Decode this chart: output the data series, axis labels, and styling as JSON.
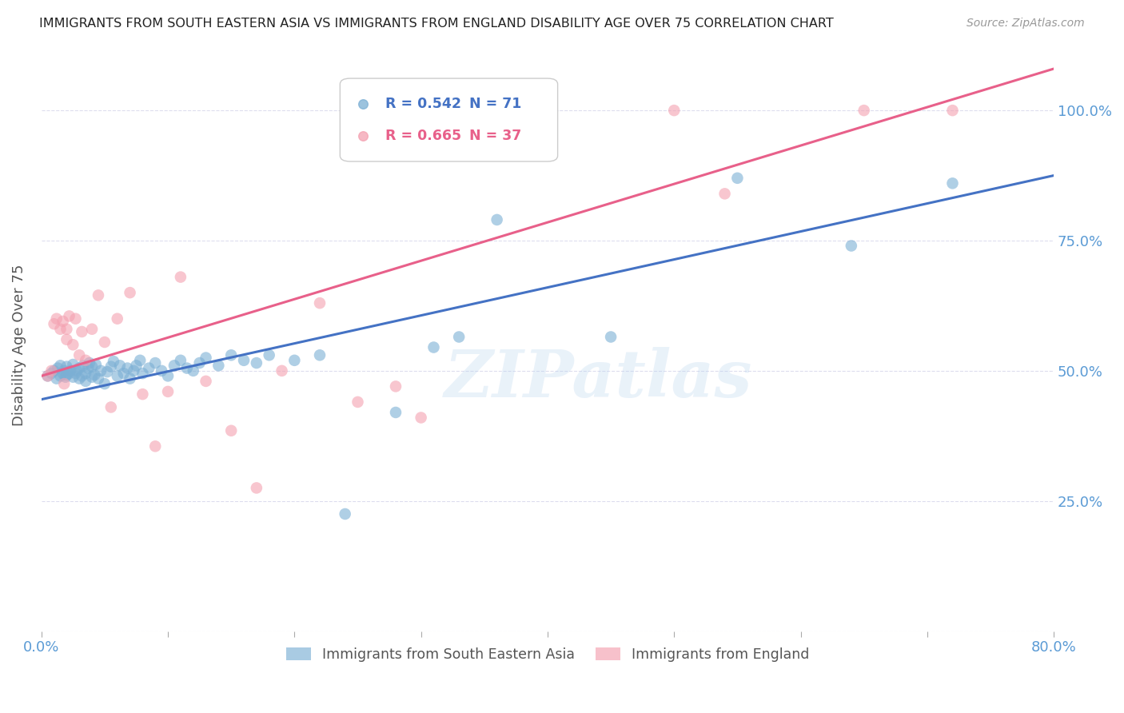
{
  "title": "IMMIGRANTS FROM SOUTH EASTERN ASIA VS IMMIGRANTS FROM ENGLAND DISABILITY AGE OVER 75 CORRELATION CHART",
  "source": "Source: ZipAtlas.com",
  "ylabel": "Disability Age Over 75",
  "y_ticks": [
    0.0,
    0.25,
    0.5,
    0.75,
    1.0
  ],
  "y_tick_labels": [
    "",
    "25.0%",
    "50.0%",
    "75.0%",
    "100.0%"
  ],
  "xlim": [
    0.0,
    0.8
  ],
  "ylim": [
    0.0,
    1.1
  ],
  "legend_label1": "Immigrants from South Eastern Asia",
  "legend_label2": "Immigrants from England",
  "R1": 0.542,
  "N1": 71,
  "R2": 0.665,
  "N2": 37,
  "blue_color": "#7BAFD4",
  "pink_color": "#F4A0B0",
  "line_blue": "#4472C4",
  "line_pink": "#E8608A",
  "axis_color": "#5B9BD5",
  "watermark": "ZIPatlas",
  "blue_points_x": [
    0.005,
    0.008,
    0.01,
    0.012,
    0.013,
    0.015,
    0.015,
    0.017,
    0.018,
    0.019,
    0.02,
    0.02,
    0.022,
    0.023,
    0.025,
    0.025,
    0.027,
    0.028,
    0.03,
    0.03,
    0.032,
    0.033,
    0.035,
    0.035,
    0.037,
    0.038,
    0.04,
    0.04,
    0.042,
    0.043,
    0.045,
    0.047,
    0.05,
    0.052,
    0.055,
    0.057,
    0.06,
    0.062,
    0.065,
    0.068,
    0.07,
    0.073,
    0.075,
    0.078,
    0.08,
    0.085,
    0.09,
    0.095,
    0.1,
    0.105,
    0.11,
    0.115,
    0.12,
    0.125,
    0.13,
    0.14,
    0.15,
    0.16,
    0.17,
    0.18,
    0.2,
    0.22,
    0.24,
    0.28,
    0.31,
    0.33,
    0.36,
    0.45,
    0.55,
    0.64,
    0.72
  ],
  "blue_points_y": [
    0.49,
    0.495,
    0.5,
    0.485,
    0.505,
    0.49,
    0.51,
    0.495,
    0.5,
    0.488,
    0.492,
    0.508,
    0.495,
    0.5,
    0.488,
    0.512,
    0.495,
    0.5,
    0.485,
    0.505,
    0.49,
    0.51,
    0.48,
    0.495,
    0.505,
    0.515,
    0.488,
    0.508,
    0.492,
    0.512,
    0.485,
    0.5,
    0.475,
    0.498,
    0.508,
    0.518,
    0.49,
    0.51,
    0.495,
    0.505,
    0.485,
    0.5,
    0.51,
    0.52,
    0.495,
    0.505,
    0.515,
    0.5,
    0.49,
    0.51,
    0.52,
    0.505,
    0.5,
    0.515,
    0.525,
    0.51,
    0.53,
    0.52,
    0.515,
    0.53,
    0.52,
    0.53,
    0.225,
    0.42,
    0.545,
    0.565,
    0.79,
    0.565,
    0.87,
    0.74,
    0.86
  ],
  "pink_points_x": [
    0.005,
    0.008,
    0.01,
    0.012,
    0.015,
    0.017,
    0.018,
    0.02,
    0.02,
    0.022,
    0.025,
    0.027,
    0.03,
    0.032,
    0.035,
    0.04,
    0.045,
    0.05,
    0.055,
    0.06,
    0.07,
    0.08,
    0.09,
    0.1,
    0.11,
    0.13,
    0.15,
    0.17,
    0.19,
    0.22,
    0.25,
    0.28,
    0.3,
    0.5,
    0.54,
    0.65,
    0.72
  ],
  "pink_points_y": [
    0.49,
    0.5,
    0.59,
    0.6,
    0.58,
    0.595,
    0.475,
    0.56,
    0.58,
    0.605,
    0.55,
    0.6,
    0.53,
    0.575,
    0.52,
    0.58,
    0.645,
    0.555,
    0.43,
    0.6,
    0.65,
    0.455,
    0.355,
    0.46,
    0.68,
    0.48,
    0.385,
    0.275,
    0.5,
    0.63,
    0.44,
    0.47,
    0.41,
    1.0,
    0.84,
    1.0,
    1.0
  ],
  "blue_trend_x0": 0.0,
  "blue_trend_x1": 0.8,
  "blue_trend_y0": 0.445,
  "blue_trend_y1": 0.875,
  "pink_trend_x0": 0.0,
  "pink_trend_x1": 0.8,
  "pink_trend_y0": 0.49,
  "pink_trend_y1": 1.08,
  "background_color": "#FFFFFF",
  "grid_color": "#DDDDEE"
}
